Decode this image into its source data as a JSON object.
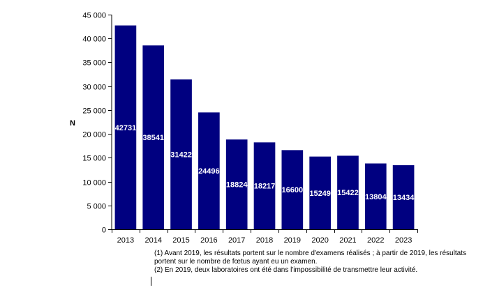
{
  "chart_data": {
    "type": "bar",
    "title": "",
    "xlabel": "",
    "ylabel": "N",
    "ylim": [
      0,
      45000
    ],
    "ytick_values": [
      0,
      5000,
      10000,
      15000,
      20000,
      25000,
      30000,
      35000,
      40000,
      45000
    ],
    "ytick_labels": [
      "0",
      "5 000",
      "10 000",
      "15 000",
      "20 000",
      "25 000",
      "30 000",
      "35 000",
      "40 000",
      "45 000"
    ],
    "categories": [
      "2013",
      "2014",
      "2015",
      "2016",
      "2017",
      "2018",
      "2019",
      "2020",
      "2021",
      "2022",
      "2023"
    ],
    "values": [
      42731,
      38541,
      31422,
      24496,
      18824,
      18217,
      16600,
      15249,
      15422,
      13804,
      13434
    ],
    "data_labels": [
      "42731",
      "38541",
      "31422",
      "24496",
      "18824",
      "18217",
      "16600",
      "15249",
      "15422",
      "13804",
      "13434"
    ],
    "bar_color": "#000080",
    "label_color": "#ffffff",
    "grid": false,
    "legend": "none"
  },
  "notes": {
    "note1": "(1) Avant 2019, les résultats portent sur le nombre d'examens réalisés ; à partir de 2019, les résultats portent sur le nombre de fœtus ayant eu un examen.",
    "note2": "(2) En 2019, deux laboratoires ont été dans l'impossibilité de transmettre leur activité."
  }
}
